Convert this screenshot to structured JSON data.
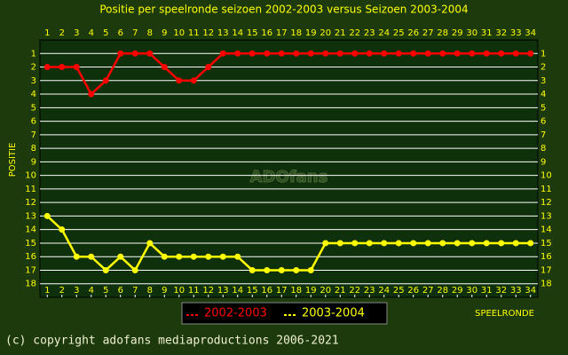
{
  "chart_data": {
    "type": "line",
    "title": "Positie per speelronde seizoen 2002-2003 versus Seizoen 2003-2004",
    "y_label": "POSITIE",
    "x_label": "SPEELRONDE",
    "watermark": "ADOfans",
    "copyright": "(c) copyright adofans mediaproductions 2006-2021",
    "x": [
      1,
      2,
      3,
      4,
      5,
      6,
      7,
      8,
      9,
      10,
      11,
      12,
      13,
      14,
      15,
      16,
      17,
      18,
      19,
      20,
      21,
      22,
      23,
      24,
      25,
      26,
      27,
      28,
      29,
      30,
      31,
      32,
      33,
      34
    ],
    "xlim": [
      0.5,
      34.5
    ],
    "xticks": [
      1,
      2,
      3,
      4,
      5,
      6,
      7,
      8,
      9,
      10,
      11,
      12,
      13,
      14,
      15,
      16,
      17,
      18,
      19,
      20,
      21,
      22,
      23,
      24,
      25,
      26,
      27,
      28,
      29,
      30,
      31,
      32,
      33,
      34
    ],
    "ylim": [
      0,
      19
    ],
    "y_reversed": true,
    "yticks": [
      1,
      2,
      3,
      4,
      5,
      6,
      7,
      8,
      9,
      10,
      11,
      12,
      13,
      14,
      15,
      16,
      17,
      18
    ],
    "grid": true,
    "series": [
      {
        "name": "2002-2003",
        "color": "#ff0000",
        "values": [
          2,
          2,
          2,
          4,
          3,
          1,
          1,
          1,
          2,
          3,
          3,
          2,
          1,
          1,
          1,
          1,
          1,
          1,
          1,
          1,
          1,
          1,
          1,
          1,
          1,
          1,
          1,
          1,
          1,
          1,
          1,
          1,
          1,
          1
        ]
      },
      {
        "name": "2003-2004",
        "color": "#ffff00",
        "values": [
          13,
          14,
          16,
          16,
          17,
          16,
          17,
          15,
          16,
          16,
          16,
          16,
          16,
          16,
          17,
          17,
          17,
          17,
          17,
          15,
          15,
          15,
          15,
          15,
          15,
          15,
          15,
          15,
          15,
          15,
          15,
          15,
          15,
          15
        ]
      }
    ]
  }
}
